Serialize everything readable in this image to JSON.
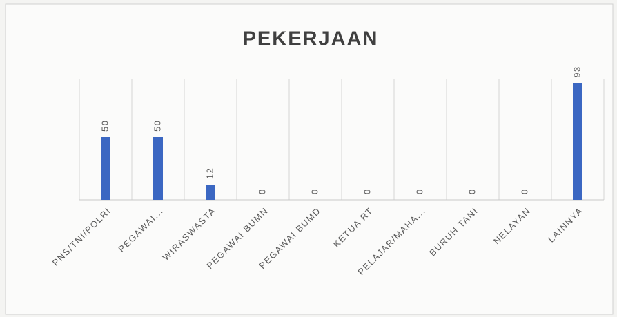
{
  "chart_data": {
    "type": "bar",
    "title": "PEKERJAAN",
    "categories": [
      "PNS/TNI/POLRI",
      "PEGAWAI...",
      "WIRASWASTA",
      "PEGAWAI BUMN",
      "PEGAWAI BUMD",
      "KETUA RT",
      "PELAJAR/MAHA...",
      "BURUH TANI",
      "NELAYAN",
      "LAINNYA"
    ],
    "values": [
      50,
      50,
      12,
      0,
      0,
      0,
      0,
      0,
      0,
      93
    ],
    "color": "#3b67c2",
    "ylim": [
      0,
      100
    ],
    "grid": true
  }
}
